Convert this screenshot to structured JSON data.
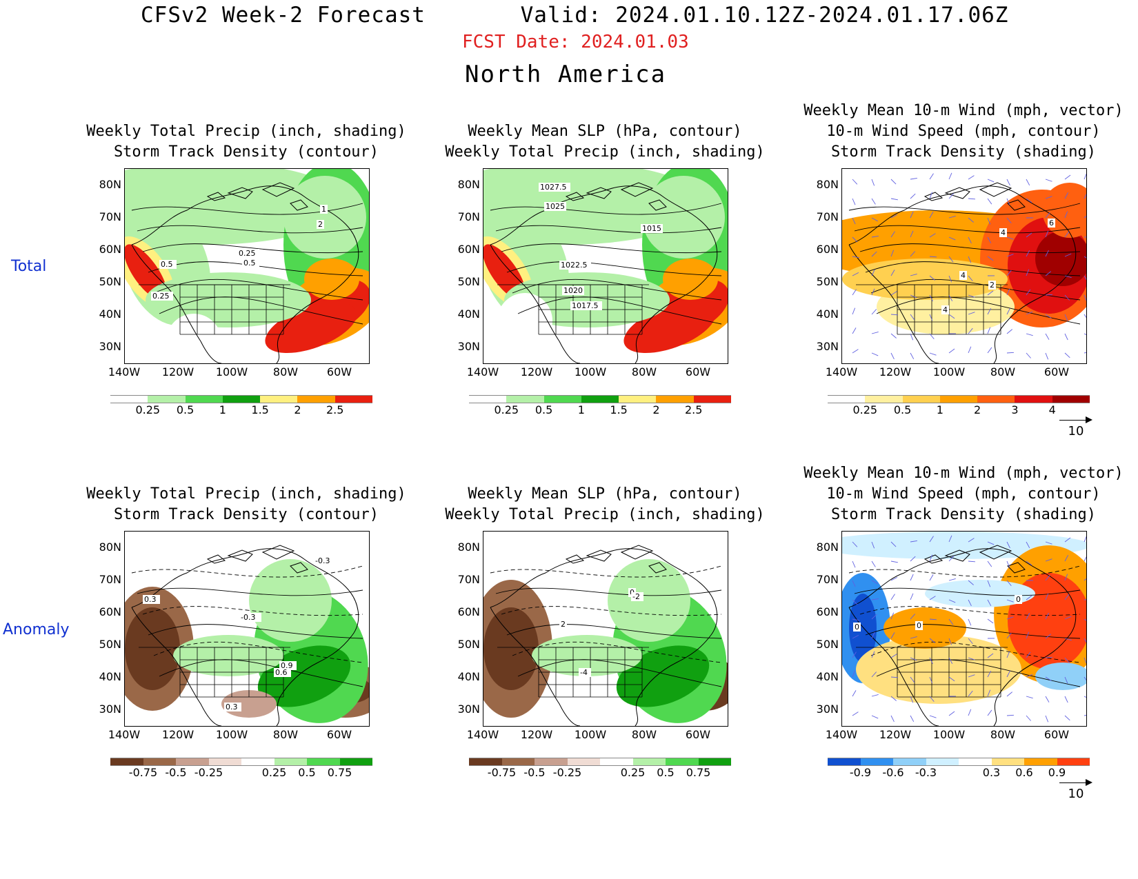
{
  "header": {
    "title": "CFSv2 Week-2 Forecast       Valid: 2024.01.10.12Z-2024.01.17.06Z",
    "fcst_date": "FCST Date: 2024.01.03",
    "region": "North America"
  },
  "rows": {
    "total_label": "Total",
    "anomaly_label": "Anomaly"
  },
  "axes": {
    "lat_labels": [
      "80N",
      "70N",
      "60N",
      "50N",
      "40N",
      "30N"
    ],
    "lon_labels": [
      "140W",
      "120W",
      "100W",
      "80W",
      "60W"
    ]
  },
  "panels": [
    {
      "title": "Weekly Total Precip (inch, shading)\nStorm Track Density (contour)",
      "scale": "precip",
      "mode": "precip"
    },
    {
      "title": "Weekly Mean SLP (hPa, contour)\nWeekly Total Precip (inch, shading)",
      "scale": "precip",
      "mode": "precip2"
    },
    {
      "title": "Weekly Mean 10-m Wind (mph, vector)\n10-m Wind Speed (mph, contour)\nStorm Track Density (shading)",
      "scale": "storm",
      "mode": "storm",
      "vector_ref": "10"
    },
    {
      "title": "Weekly Total Precip (inch, shading)\nStorm Track Density (contour)",
      "scale": "anom",
      "mode": "anom"
    },
    {
      "title": "Weekly Mean SLP (hPa, contour)\nWeekly Total Precip (inch, shading)",
      "scale": "anom",
      "mode": "anom2"
    },
    {
      "title": "Weekly Mean 10-m Wind (mph, vector)\n10-m Wind Speed (mph, contour)\nStorm Track Density (shading)",
      "scale": "stormanom",
      "mode": "stormanom",
      "vector_ref": "10"
    }
  ],
  "contour_labels": {
    "p1": [
      "1",
      "2",
      "0.25",
      "0.5",
      "0.5",
      "0.25"
    ],
    "p2": [
      "1027.5",
      "1025",
      "1015",
      "1022.5",
      "1020",
      "1017.5"
    ],
    "p3": [
      "6",
      "4",
      "4",
      "2",
      "4"
    ],
    "p4": [
      "0.3",
      "-0.3",
      "-0.3",
      "0.9",
      "0.6",
      "0.3"
    ],
    "p5": [
      "0",
      "-2",
      "2",
      "-4"
    ],
    "p6": [
      "0",
      "0",
      "0"
    ]
  },
  "scales": {
    "precip": {
      "labels": [
        "0.25",
        "0.5",
        "1",
        "1.5",
        "2",
        "2.5"
      ],
      "colors": [
        "#ffffff",
        "#b4f0a8",
        "#50d850",
        "#10a010",
        "#fff080",
        "#ffa000",
        "#e82010"
      ]
    },
    "storm": {
      "labels": [
        "0.25",
        "0.5",
        "1",
        "2",
        "3",
        "4"
      ],
      "colors": [
        "#ffffff",
        "#fff0a0",
        "#ffd050",
        "#ffa000",
        "#ff6010",
        "#e01010",
        "#a00000"
      ]
    },
    "anom": {
      "labels": [
        "-0.75",
        "-0.5",
        "-0.25",
        "0.25",
        "0.5",
        "0.75"
      ],
      "colors": [
        "#6a3a20",
        "#9a6848",
        "#c8a090",
        "#f0dcd4",
        "#ffffff",
        "#b4f0a8",
        "#50d850",
        "#10a010"
      ]
    },
    "stormanom": {
      "labels": [
        "-0.9",
        "-0.6",
        "-0.3",
        "0.3",
        "0.6",
        "0.9"
      ],
      "colors": [
        "#1050d0",
        "#3090f0",
        "#90d0f8",
        "#d0f0ff",
        "#ffffff",
        "#ffe080",
        "#ffa000",
        "#ff4010"
      ]
    }
  }
}
